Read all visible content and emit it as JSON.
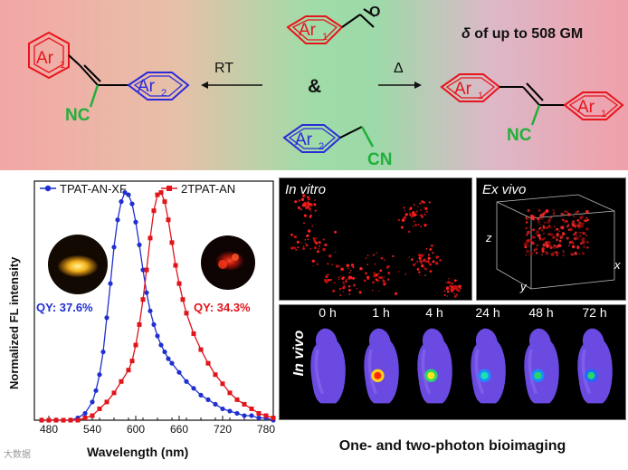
{
  "scheme": {
    "ar1": "Ar",
    "ar1_sub": "1",
    "ar2": "Ar",
    "ar2_sub": "2",
    "aldehyde_o": "O",
    "amp": "&",
    "cn": "CN",
    "nc": "NC",
    "rt": "RT",
    "delta": "Δ",
    "delta_value_symbol": "δ",
    "delta_value_text": " of up to 508 GM",
    "colors": {
      "ar1": "#e8141b",
      "ar2": "#2b2bd9",
      "cn": "#22b03a",
      "bond": "#000000"
    }
  },
  "chart_data": {
    "type": "line",
    "xlabel": "Wavelength (nm)",
    "ylabel": "Normalized FL intensity",
    "xlim": [
      460,
      790
    ],
    "ylim": [
      0,
      1.05
    ],
    "xticks": [
      480,
      540,
      600,
      660,
      720,
      780
    ],
    "x_tick_labels": [
      "480",
      "540",
      "600",
      "660",
      "720",
      "780"
    ],
    "series": [
      {
        "name": "TPAT-AN-XF",
        "color": "#1f2fd0",
        "marker": "circle",
        "x": [
          470,
          480,
          490,
          500,
          510,
          520,
          530,
          540,
          545,
          550,
          555,
          560,
          565,
          570,
          575,
          580,
          585,
          590,
          595,
          600,
          605,
          610,
          615,
          620,
          625,
          630,
          635,
          640,
          645,
          650,
          660,
          670,
          680,
          690,
          700,
          710,
          720,
          730,
          740,
          750,
          760,
          770,
          780,
          790
        ],
        "y": [
          0.0,
          0.0,
          0.0,
          0.0,
          0.0,
          0.01,
          0.03,
          0.08,
          0.13,
          0.2,
          0.3,
          0.45,
          0.6,
          0.76,
          0.88,
          0.96,
          1.0,
          0.99,
          0.95,
          0.87,
          0.77,
          0.66,
          0.56,
          0.48,
          0.42,
          0.37,
          0.33,
          0.3,
          0.27,
          0.25,
          0.21,
          0.17,
          0.14,
          0.11,
          0.09,
          0.07,
          0.05,
          0.04,
          0.03,
          0.02,
          0.02,
          0.01,
          0.01,
          0.0
        ]
      },
      {
        "name": "2TPAT-AN",
        "color": "#e0141a",
        "marker": "square",
        "x": [
          470,
          480,
          490,
          500,
          510,
          520,
          530,
          540,
          550,
          560,
          570,
          580,
          590,
          595,
          600,
          605,
          610,
          615,
          620,
          625,
          630,
          635,
          640,
          645,
          650,
          655,
          660,
          665,
          670,
          680,
          690,
          700,
          710,
          720,
          730,
          740,
          750,
          760,
          770,
          780,
          790
        ],
        "y": [
          0.0,
          0.0,
          0.0,
          0.0,
          0.0,
          0.0,
          0.01,
          0.02,
          0.05,
          0.08,
          0.12,
          0.17,
          0.22,
          0.26,
          0.33,
          0.42,
          0.53,
          0.66,
          0.8,
          0.92,
          0.99,
          1.0,
          0.96,
          0.88,
          0.78,
          0.68,
          0.6,
          0.53,
          0.47,
          0.38,
          0.31,
          0.25,
          0.2,
          0.16,
          0.12,
          0.09,
          0.07,
          0.05,
          0.03,
          0.02,
          0.01
        ]
      }
    ],
    "annotations": [
      {
        "text": "QY: 37.6%",
        "color": "#1f2fd0"
      },
      {
        "text": "QY: 34.3%",
        "color": "#e0141a"
      }
    ],
    "legend_placement": "top"
  },
  "panels": {
    "in_vitro": "In vitro",
    "ex_vivo": "Ex vivo",
    "axis_z": "z",
    "axis_y": "y",
    "axis_x": "x",
    "in_vivo": "In vivo",
    "times": [
      "0 h",
      "1 h",
      "4 h",
      "24 h",
      "48 h",
      "72 h"
    ],
    "caption": "One- and two-photon bioimaging"
  },
  "watermark": "大数据"
}
